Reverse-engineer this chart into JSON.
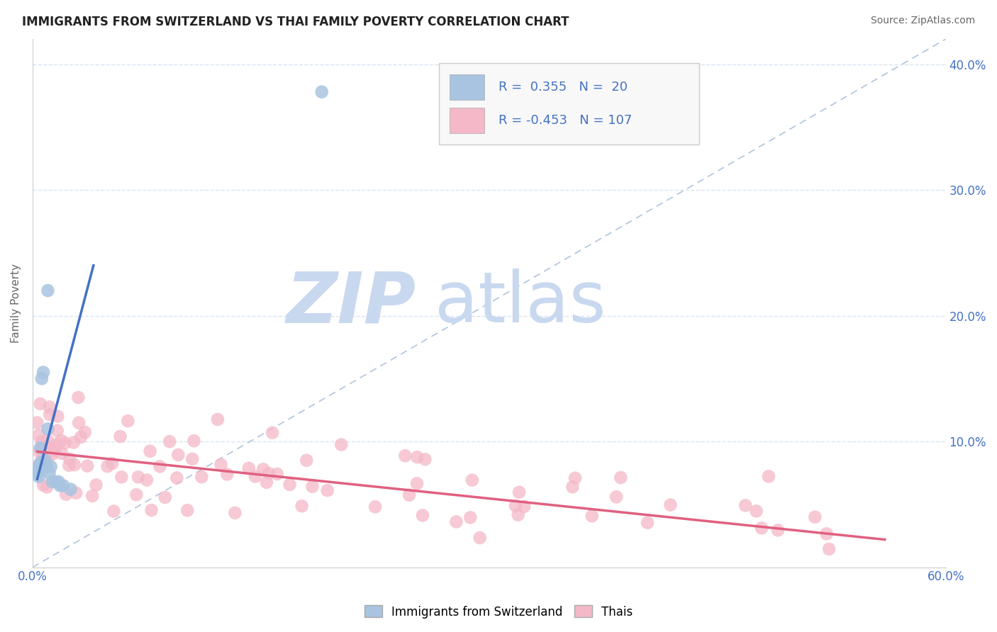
{
  "title": "IMMIGRANTS FROM SWITZERLAND VS THAI FAMILY POVERTY CORRELATION CHART",
  "source_text": "Source: ZipAtlas.com",
  "ylabel": "Family Poverty",
  "xlim": [
    0.0,
    0.6
  ],
  "ylim": [
    0.0,
    0.42
  ],
  "swiss_color": "#a8c4e0",
  "thai_color": "#f4b8c8",
  "swiss_line_color": "#4472c4",
  "thai_line_color": "#e06080",
  "ref_line_color": "#b0c4de",
  "watermark_zip_color": "#c8d8ef",
  "watermark_atlas_color": "#c8d8ef",
  "background_color": "#ffffff",
  "swiss_x": [
    0.003,
    0.004,
    0.004,
    0.005,
    0.005,
    0.006,
    0.007,
    0.008,
    0.009,
    0.01,
    0.01,
    0.011,
    0.012,
    0.013,
    0.015,
    0.017,
    0.018,
    0.02,
    0.025,
    0.19
  ],
  "swiss_y": [
    0.075,
    0.08,
    0.072,
    0.083,
    0.095,
    0.15,
    0.155,
    0.085,
    0.08,
    0.11,
    0.22,
    0.075,
    0.08,
    0.068,
    0.068,
    0.068,
    0.065,
    0.065,
    0.062,
    0.378
  ],
  "swiss_line_x0": 0.003,
  "swiss_line_x1": 0.04,
  "swiss_line_y0": 0.07,
  "swiss_line_y1": 0.24,
  "thai_line_x0": 0.003,
  "thai_line_x1": 0.56,
  "thai_line_y0": 0.092,
  "thai_line_y1": 0.022
}
